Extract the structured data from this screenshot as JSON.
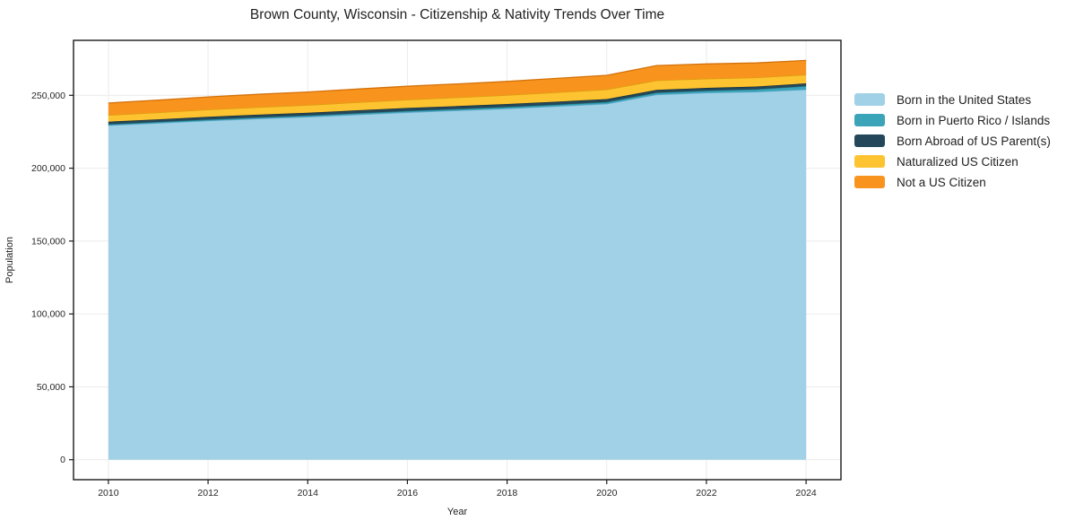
{
  "title": "Brown County, Wisconsin - Citizenship & Nativity Trends Over Time",
  "chart_data": {
    "type": "area",
    "stacked": true,
    "title": "Brown County, Wisconsin - Citizenship & Nativity Trends Over Time",
    "xlabel": "Year",
    "ylabel": "Population",
    "x": [
      2010,
      2011,
      2012,
      2013,
      2014,
      2015,
      2016,
      2017,
      2018,
      2019,
      2020,
      2021,
      2022,
      2023,
      2024
    ],
    "series": [
      {
        "name": "Born in the United States",
        "color": "#a1d1e7",
        "edge_color": "#64a9cc",
        "values": [
          229400,
          231000,
          232600,
          234000,
          235200,
          236800,
          238300,
          239600,
          240900,
          242500,
          244200,
          250500,
          251800,
          252400,
          254000
        ]
      },
      {
        "name": "Born in Puerto Rico / Islands",
        "color": "#3ba4b9",
        "edge_color": "#23808f",
        "values": [
          700,
          700,
          800,
          800,
          900,
          900,
          1000,
          1000,
          1100,
          1100,
          1200,
          1300,
          1400,
          1700,
          2300
        ]
      },
      {
        "name": "Born Abroad of US Parent(s)",
        "color": "#24485a",
        "edge_color": "#15303d",
        "values": [
          1800,
          1800,
          1900,
          1900,
          1900,
          2000,
          2000,
          2000,
          2000,
          2000,
          2000,
          1900,
          1900,
          1900,
          1900
        ]
      },
      {
        "name": "Naturalized US Citizen",
        "color": "#fdc330",
        "edge_color": "#d99e0e",
        "values": [
          4500,
          4700,
          4900,
          5100,
          5300,
          5500,
          5700,
          5900,
          6100,
          6400,
          6600,
          6500,
          6300,
          6200,
          5900
        ]
      },
      {
        "name": "Not a US Citizen",
        "color": "#f8941e",
        "edge_color": "#d4720a",
        "values": [
          8300,
          8500,
          8700,
          8900,
          9000,
          9100,
          9200,
          9300,
          9400,
          9600,
          9700,
          10200,
          10100,
          10000,
          9800
        ]
      }
    ],
    "x_ticks": [
      2010,
      2012,
      2014,
      2016,
      2018,
      2020,
      2022,
      2024
    ],
    "y_ticks": [
      0,
      50000,
      100000,
      150000,
      200000,
      250000
    ],
    "xlim": [
      2009.3,
      2024.7
    ],
    "ylim": [
      -13700,
      287700
    ],
    "grid": true,
    "grid_color": "#ebebeb",
    "spine_color": "#1a1a1a",
    "legend_position": "right-outside"
  }
}
